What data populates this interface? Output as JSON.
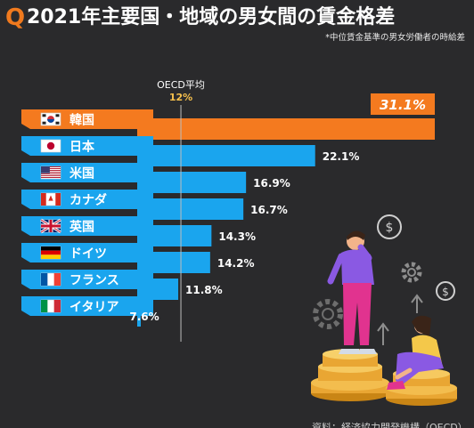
{
  "title": {
    "badge": "Q",
    "text": "2021年主要国・地域の男女間の賃金格差"
  },
  "note": "*中位賃金基準の男女労働者の時給差",
  "source": "資料：経済協力開発機構（OECD）",
  "colors": {
    "background": "#2a2a2c",
    "highlight": "#f47a1f",
    "bar": "#1aa5ee",
    "label_text": "#ffffff"
  },
  "chart_data": {
    "type": "bar",
    "orientation": "horizontal",
    "categories": [
      "韓国",
      "日本",
      "米国",
      "カナダ",
      "英国",
      "ドイツ",
      "フランス",
      "イタリア"
    ],
    "values": [
      31.1,
      22.1,
      16.9,
      16.7,
      14.3,
      14.2,
      11.8,
      7.6
    ],
    "value_labels": [
      "31.1%",
      "22.1%",
      "16.9%",
      "16.7%",
      "14.3%",
      "14.2%",
      "11.8%",
      "7.6%"
    ],
    "flags": [
      "kr",
      "jp",
      "us",
      "ca",
      "gb",
      "de",
      "fr",
      "it"
    ],
    "highlight_index": 0,
    "reference_line": {
      "label": "OECD平均",
      "value": 12,
      "value_label": "12%"
    },
    "xlim": [
      0,
      32
    ],
    "grid": false,
    "legend": "none"
  }
}
